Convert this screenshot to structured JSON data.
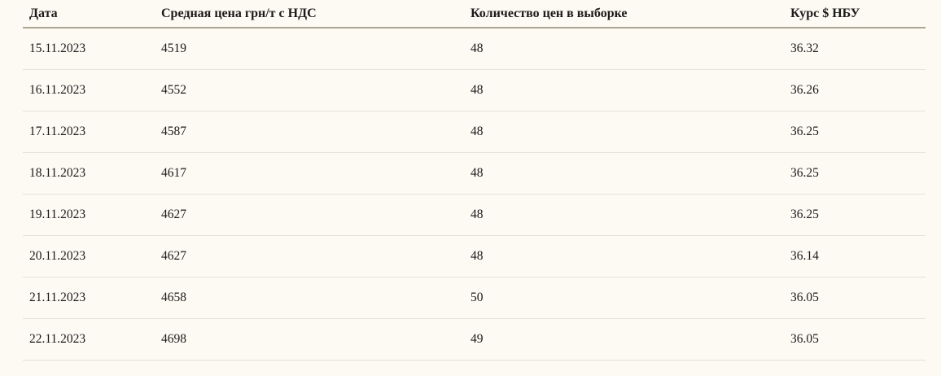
{
  "colors": {
    "page_background": "#fdf9f3",
    "header_rule": "#a9a794",
    "row_separator": "#e5e1da",
    "text": "#1b1b1b"
  },
  "table": {
    "columns": [
      {
        "key": "date",
        "label": "Дата"
      },
      {
        "key": "avg-price",
        "label": "Средная цена грн/т с НДС"
      },
      {
        "key": "sample-count",
        "label": "Количество цен в выборке"
      },
      {
        "key": "usd-rate",
        "label": "Курс $ НБУ"
      }
    ],
    "rows": [
      [
        "15.11.2023",
        "4519",
        "48",
        "36.32"
      ],
      [
        "16.11.2023",
        "4552",
        "48",
        "36.26"
      ],
      [
        "17.11.2023",
        "4587",
        "48",
        "36.25"
      ],
      [
        "18.11.2023",
        "4617",
        "48",
        "36.25"
      ],
      [
        "19.11.2023",
        "4627",
        "48",
        "36.25"
      ],
      [
        "20.11.2023",
        "4627",
        "48",
        "36.14"
      ],
      [
        "21.11.2023",
        "4658",
        "50",
        "36.05"
      ],
      [
        "22.11.2023",
        "4698",
        "49",
        "36.05"
      ]
    ]
  },
  "chart_data": {
    "type": "table",
    "title": "",
    "columns": [
      "Дата",
      "Средная цена грн/т с НДС",
      "Количество цен в выборке",
      "Курс $ НБУ"
    ],
    "rows": [
      [
        "15.11.2023",
        4519,
        48,
        36.32
      ],
      [
        "16.11.2023",
        4552,
        48,
        36.26
      ],
      [
        "17.11.2023",
        4587,
        48,
        36.25
      ],
      [
        "18.11.2023",
        4617,
        48,
        36.25
      ],
      [
        "19.11.2023",
        4627,
        48,
        36.25
      ],
      [
        "20.11.2023",
        4627,
        48,
        36.14
      ],
      [
        "21.11.2023",
        4658,
        50,
        36.05
      ],
      [
        "22.11.2023",
        4698,
        49,
        36.05
      ]
    ]
  }
}
